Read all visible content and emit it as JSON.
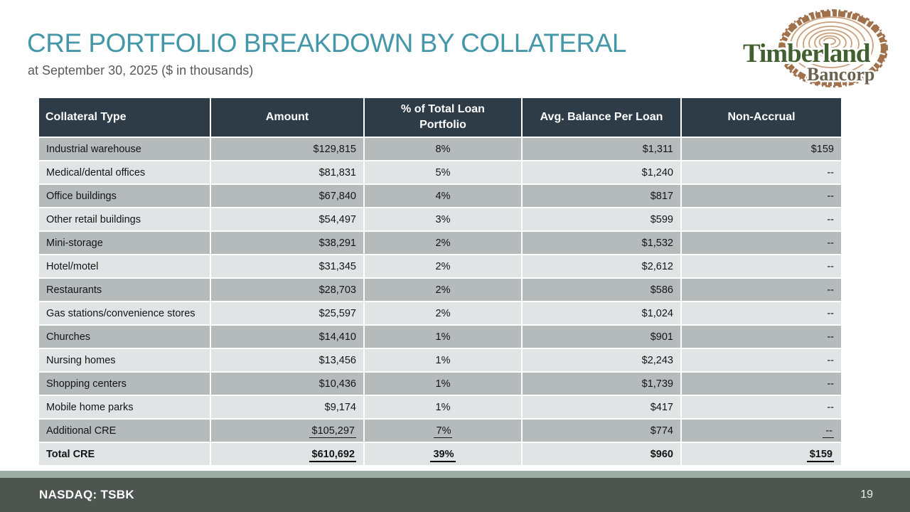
{
  "slide": {
    "title": "CRE PORTFOLIO BREAKDOWN BY COLLATERAL",
    "subtitle": "at September 30, 2025 ($ in thousands)",
    "footer_ticker": "NASDAQ: TSBK",
    "page_number": "19"
  },
  "logo": {
    "name": "Timberland",
    "subname": "Bancorp"
  },
  "colors": {
    "title_teal": "#4497A9",
    "table_header_bg": "#2E3C48",
    "row_dark": "#B5BBBB",
    "row_light": "#E1E4E4",
    "footer_bar": "#4D5551",
    "footer_accent": "#9FAEA4",
    "logo_green": "#42602F",
    "logo_bark_brown": "#A0714B",
    "logo_ring_tan": "#C8A181",
    "logo_bancorp_brown": "#6A614E"
  },
  "table": {
    "columns": [
      "Collateral Type",
      "Amount",
      "% of Total Loan\nPortfolio",
      "Avg. Balance Per Loan",
      "Non-Accrual"
    ],
    "rows": [
      {
        "type": "Industrial warehouse",
        "amount": "$129,815",
        "pct": "8%",
        "avg": "$1,311",
        "nonaccrual": "$159"
      },
      {
        "type": "Medical/dental offices",
        "amount": "$81,831",
        "pct": "5%",
        "avg": "$1,240",
        "nonaccrual": "--"
      },
      {
        "type": "Office buildings",
        "amount": "$67,840",
        "pct": "4%",
        "avg": "$817",
        "nonaccrual": "--"
      },
      {
        "type": "Other retail buildings",
        "amount": "$54,497",
        "pct": "3%",
        "avg": "$599",
        "nonaccrual": "--"
      },
      {
        "type": "Mini-storage",
        "amount": "$38,291",
        "pct": "2%",
        "avg": "$1,532",
        "nonaccrual": "--"
      },
      {
        "type": "Hotel/motel",
        "amount": "$31,345",
        "pct": "2%",
        "avg": "$2,612",
        "nonaccrual": "--"
      },
      {
        "type": "Restaurants",
        "amount": "$28,703",
        "pct": "2%",
        "avg": "$586",
        "nonaccrual": "--"
      },
      {
        "type": "Gas stations/convenience stores",
        "amount": "$25,597",
        "pct": "2%",
        "avg": "$1,024",
        "nonaccrual": "--"
      },
      {
        "type": "Churches",
        "amount": "$14,410",
        "pct": "1%",
        "avg": "$901",
        "nonaccrual": "--"
      },
      {
        "type": "Nursing homes",
        "amount": "$13,456",
        "pct": "1%",
        "avg": "$2,243",
        "nonaccrual": "--"
      },
      {
        "type": "Shopping centers",
        "amount": "$10,436",
        "pct": "1%",
        "avg": "$1,739",
        "nonaccrual": "--"
      },
      {
        "type": "Mobile home parks",
        "amount": "$9,174",
        "pct": "1%",
        "avg": "$417",
        "nonaccrual": "--"
      },
      {
        "type": "Additional CRE",
        "amount": "$105,297",
        "pct": "7%",
        "avg": "$774",
        "nonaccrual": "--",
        "underline": [
          "amount",
          "pct",
          "nonaccrual"
        ]
      },
      {
        "type": "Total CRE",
        "amount": "$610,692",
        "pct": "39%",
        "avg": "$960",
        "nonaccrual": "$159",
        "bold": true,
        "underline": [
          "amount",
          "pct",
          "nonaccrual"
        ]
      }
    ]
  }
}
